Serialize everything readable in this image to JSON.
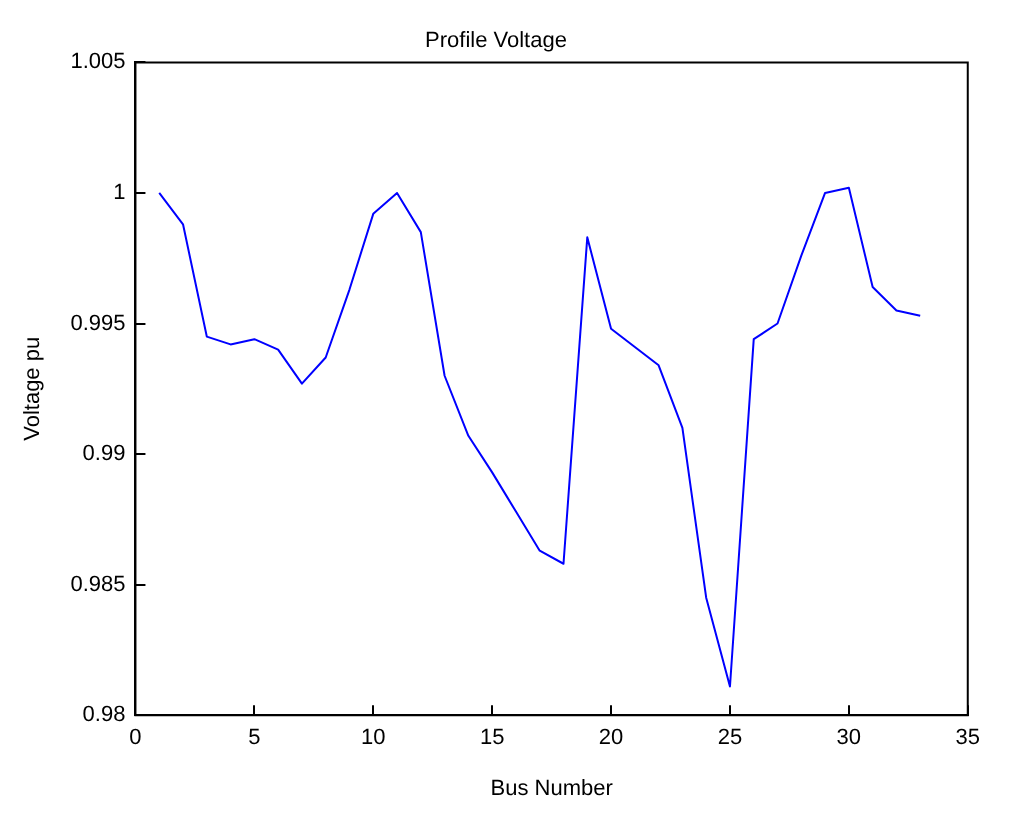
{
  "chart_data": {
    "type": "line",
    "title": "Profile Voltage",
    "xlabel": "Bus Number",
    "ylabel": "Voltage pu",
    "x": [
      1,
      2,
      3,
      4,
      5,
      6,
      7,
      8,
      9,
      10,
      11,
      12,
      13,
      14,
      15,
      16,
      17,
      18,
      19,
      20,
      21,
      22,
      23,
      24,
      25,
      26,
      27,
      28,
      29,
      30,
      31,
      32,
      33
    ],
    "series": [
      {
        "color": "#0000ff",
        "values": [
          1.0,
          0.9988,
          0.9945,
          0.9942,
          0.9944,
          0.994,
          0.9927,
          0.9937,
          0.9963,
          0.9992,
          1.0,
          0.9985,
          0.993,
          0.9907,
          0.9893,
          0.9878,
          0.9863,
          0.9858,
          0.9983,
          0.9948,
          0.9941,
          0.9934,
          0.991,
          0.9845,
          0.9811,
          0.9944,
          0.995,
          0.9976,
          1.0,
          1.0002,
          0.9964,
          0.9955,
          0.9953
        ]
      }
    ],
    "xlim": [
      0,
      35
    ],
    "xticks": [
      0,
      5,
      10,
      15,
      20,
      25,
      30,
      35
    ],
    "ylim": [
      0.98,
      1.005
    ],
    "yticks": [
      0.98,
      0.985,
      0.99,
      0.995,
      1,
      1.005
    ],
    "grid": false,
    "legend": false,
    "marker": "none",
    "line_style": "solid"
  }
}
